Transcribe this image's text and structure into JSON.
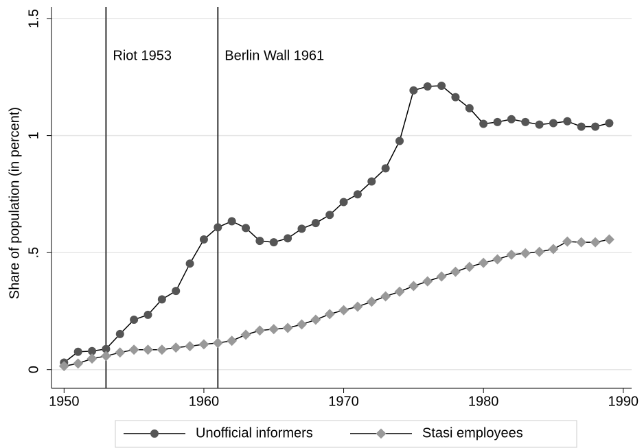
{
  "chart_data": {
    "type": "line",
    "ylabel": "Share of population (in percent)",
    "x": [
      1950,
      1951,
      1952,
      1953,
      1954,
      1955,
      1956,
      1957,
      1958,
      1959,
      1960,
      1961,
      1962,
      1963,
      1964,
      1965,
      1966,
      1967,
      1968,
      1969,
      1970,
      1971,
      1972,
      1973,
      1974,
      1975,
      1976,
      1977,
      1978,
      1979,
      1980,
      1981,
      1982,
      1983,
      1984,
      1985,
      1986,
      1987,
      1988,
      1989
    ],
    "series": [
      {
        "name": "Unofficial informers",
        "color": "#555555",
        "marker": "circle",
        "values": [
          0.03,
          0.076,
          0.079,
          0.088,
          0.152,
          0.213,
          0.234,
          0.3,
          0.336,
          0.453,
          0.556,
          0.608,
          0.634,
          0.605,
          0.55,
          0.544,
          0.561,
          0.602,
          0.626,
          0.661,
          0.716,
          0.749,
          0.804,
          0.86,
          0.977,
          1.193,
          1.21,
          1.213,
          1.164,
          1.117,
          1.05,
          1.058,
          1.07,
          1.058,
          1.047,
          1.053,
          1.061,
          1.038,
          1.038,
          1.053
        ]
      },
      {
        "name": "Stasi employees",
        "color": "#999999",
        "marker": "diamond",
        "values": [
          0.015,
          0.026,
          0.047,
          0.058,
          0.073,
          0.085,
          0.085,
          0.085,
          0.094,
          0.1,
          0.108,
          0.114,
          0.123,
          0.149,
          0.167,
          0.173,
          0.178,
          0.193,
          0.213,
          0.237,
          0.254,
          0.269,
          0.29,
          0.313,
          0.333,
          0.357,
          0.377,
          0.398,
          0.418,
          0.439,
          0.456,
          0.471,
          0.491,
          0.497,
          0.503,
          0.515,
          0.547,
          0.544,
          0.544,
          0.556
        ]
      }
    ],
    "vlines": [
      {
        "x": 1953,
        "label": "Riot 1953"
      },
      {
        "x": 1961,
        "label": "Berlin Wall 1961"
      }
    ],
    "xlim": [
      1949.1,
      1990.6
    ],
    "xticks": [
      1950,
      1960,
      1970,
      1980,
      1990
    ],
    "ylim": [
      -0.08,
      1.55
    ],
    "yticks": [
      0,
      {
        "value": 0.5,
        "label": ".5"
      },
      1,
      1.5
    ],
    "grid": true,
    "legend": "bottom"
  }
}
